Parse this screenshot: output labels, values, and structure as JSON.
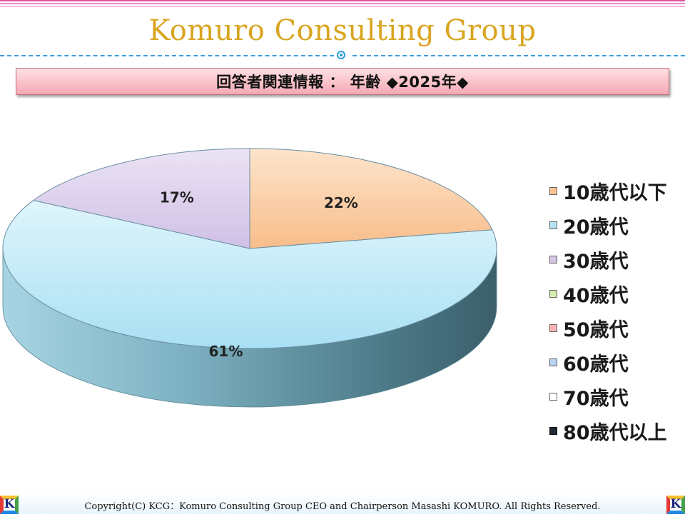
{
  "header": {
    "title": "Komuro Consulting Group",
    "subtitle": "回答者関連情報 ： 年齢 ◆2025年◆"
  },
  "chart_data": {
    "type": "pie",
    "title": "回答者関連情報 ： 年齢 ◆2025年◆",
    "slices": [
      {
        "label": "10歳代以下",
        "value": 22,
        "display": "22%",
        "color": "#f9c291"
      },
      {
        "label": "20歳代",
        "value": 61,
        "display": "61%",
        "color": "#b3e3f4"
      },
      {
        "label": "30歳代",
        "value": 17,
        "display": "17%",
        "color": "#d5c6e8"
      }
    ],
    "legend": {
      "position": "right",
      "entries": [
        {
          "label": "10歳代以下",
          "color": "#f9c291"
        },
        {
          "label": "20歳代",
          "color": "#b3e3f4"
        },
        {
          "label": "30歳代",
          "color": "#d5c6e8"
        },
        {
          "label": "40歳代",
          "color": "#d4ecb0"
        },
        {
          "label": "50歳代",
          "color": "#f7b3b3"
        },
        {
          "label": "60歳代",
          "color": "#b7d4f2"
        },
        {
          "label": "70歳代",
          "color": "#ffffff"
        },
        {
          "label": "80歳代以上",
          "color": "#1f2a36"
        }
      ]
    }
  },
  "footer": {
    "copyright": "Copyright(C) KCG：Komuro Consulting Group CEO and Chairperson Masashi KOMURO. All Rights Reserved.",
    "logo_letter": "K"
  }
}
